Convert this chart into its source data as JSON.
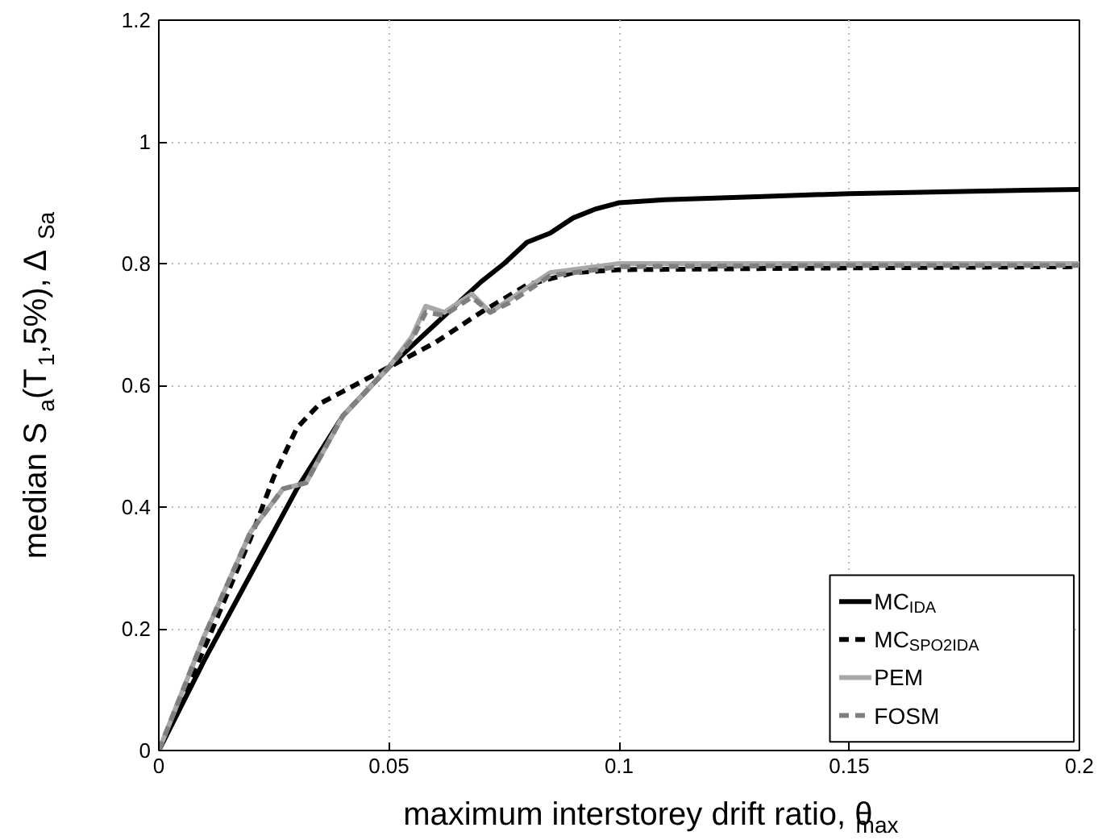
{
  "chart_data": {
    "type": "line",
    "xlabel": "maximum interstorey drift ratio, θ$_{max}$",
    "ylabel": "median S$_{a}$(T$_{1}$,5%), Δ$_{Sa}$",
    "xlim": [
      0,
      0.2
    ],
    "xticks": [
      0,
      0.05,
      0.1,
      0.15,
      0.2
    ],
    "ylim": [
      0,
      1.2
    ],
    "yticks": [
      0,
      0.2,
      0.4,
      0.6,
      0.8,
      1,
      1.2
    ],
    "grid": true,
    "legend": "bottom right",
    "series": [
      {
        "name": "MC$_{IDA}$",
        "color": "#000000",
        "line_style": "solid",
        "x": [
          0,
          0.01,
          0.02,
          0.03,
          0.04,
          0.05,
          0.06,
          0.07,
          0.075,
          0.08,
          0.085,
          0.09,
          0.095,
          0.1,
          0.11,
          0.13,
          0.15,
          0.17,
          0.2
        ],
        "values": [
          0,
          0.15,
          0.29,
          0.43,
          0.55,
          0.63,
          0.7,
          0.77,
          0.8,
          0.835,
          0.85,
          0.875,
          0.89,
          0.9,
          0.905,
          0.91,
          0.915,
          0.918,
          0.922
        ]
      },
      {
        "name": "MC$_{SPO2IDA}$",
        "color": "#000000",
        "line_style": "dashed",
        "x": [
          0,
          0.01,
          0.02,
          0.025,
          0.03,
          0.035,
          0.04,
          0.05,
          0.06,
          0.07,
          0.08,
          0.09,
          0.1,
          0.15,
          0.2
        ],
        "values": [
          0,
          0.17,
          0.35,
          0.45,
          0.53,
          0.57,
          0.59,
          0.63,
          0.67,
          0.72,
          0.765,
          0.785,
          0.79,
          0.793,
          0.795
        ]
      },
      {
        "name": "PEM",
        "color": "#a8a8a8",
        "line_style": "solid",
        "x": [
          0,
          0.01,
          0.02,
          0.027,
          0.032,
          0.04,
          0.05,
          0.055,
          0.058,
          0.062,
          0.068,
          0.072,
          0.076,
          0.085,
          0.1,
          0.15,
          0.2
        ],
        "values": [
          0,
          0.19,
          0.36,
          0.43,
          0.44,
          0.55,
          0.63,
          0.68,
          0.73,
          0.72,
          0.75,
          0.72,
          0.74,
          0.785,
          0.8,
          0.8,
          0.8
        ]
      },
      {
        "name": "FOSM",
        "color": "#7f7f7f",
        "line_style": "dashed",
        "x": [
          0,
          0.01,
          0.02,
          0.027,
          0.032,
          0.04,
          0.05,
          0.055,
          0.058,
          0.062,
          0.068,
          0.072,
          0.076,
          0.085,
          0.1,
          0.15,
          0.2
        ],
        "values": [
          0,
          0.19,
          0.36,
          0.43,
          0.44,
          0.55,
          0.63,
          0.675,
          0.72,
          0.715,
          0.745,
          0.72,
          0.735,
          0.78,
          0.795,
          0.797,
          0.797
        ]
      }
    ]
  }
}
